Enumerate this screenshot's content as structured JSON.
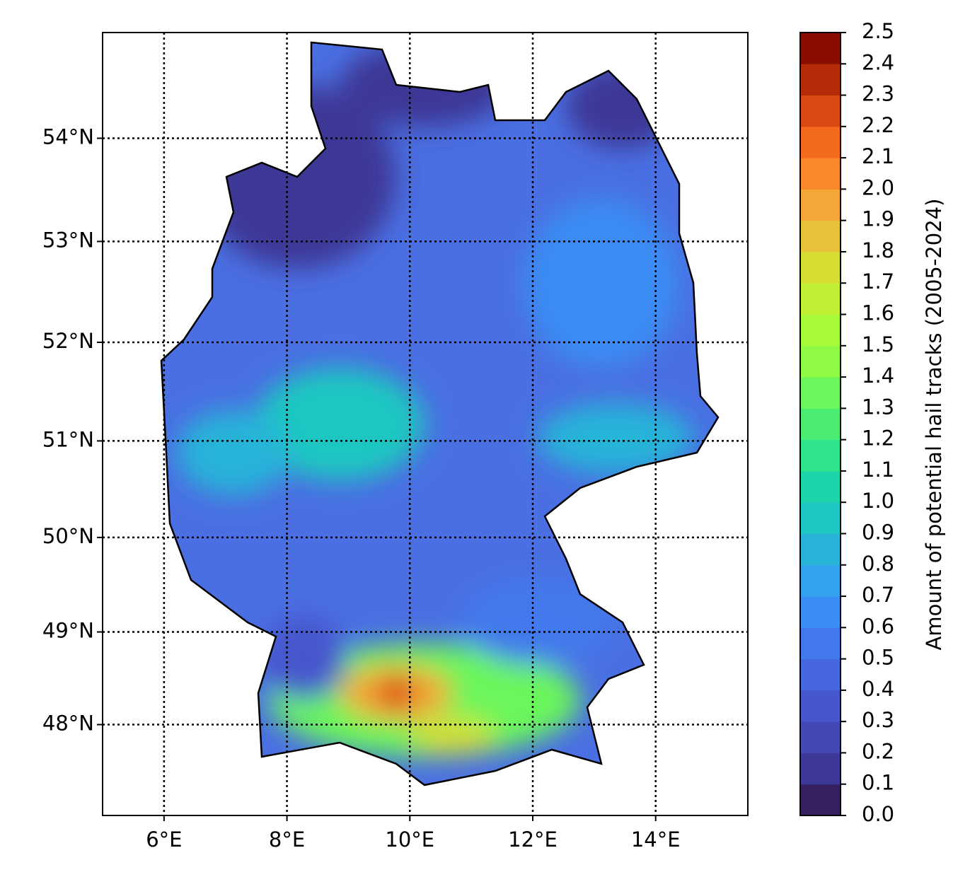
{
  "chart_data": {
    "type": "map",
    "projection": "mercator",
    "xlim": [
      5,
      15.5
    ],
    "ylim": [
      47,
      55
    ],
    "xticks": [
      {
        "value": 6,
        "label": "6°E"
      },
      {
        "value": 8,
        "label": "8°E"
      },
      {
        "value": 10,
        "label": "10°E"
      },
      {
        "value": 12,
        "label": "12°E"
      },
      {
        "value": 14,
        "label": "14°E"
      }
    ],
    "yticks": [
      {
        "value": 48,
        "label": "48°N"
      },
      {
        "value": 49,
        "label": "49°N"
      },
      {
        "value": 50,
        "label": "50°N"
      },
      {
        "value": 51,
        "label": "51°N"
      },
      {
        "value": 52,
        "label": "52°N"
      },
      {
        "value": 53,
        "label": "53°N"
      },
      {
        "value": 54,
        "label": "54°N"
      }
    ],
    "grid": true,
    "colorbar": {
      "label": "Amount of potential hail tracks (2005-2024)",
      "lim": [
        0,
        2.5
      ],
      "ticks": [
        {
          "value": 0,
          "label": "0.0"
        },
        0.1,
        0.2,
        0.3,
        0.4,
        0.5,
        0.6,
        0.7,
        0.8,
        0.9,
        {
          "value": 1,
          "label": "1.0"
        },
        1.1,
        1.2,
        1.3,
        1.4,
        1.5,
        1.6,
        1.7,
        1.8,
        1.9,
        {
          "value": 2,
          "label": "2.0"
        },
        2.1,
        2.2,
        2.3,
        2.4,
        2.5
      ],
      "colors": [
        "#36215e",
        "#3e3896",
        "#4448b4",
        "#4656cd",
        "#4667de",
        "#4279ec",
        "#3b8cf3",
        "#33a1ed",
        "#28b4d8",
        "#1ec7c1",
        "#1bd4aa",
        "#2fe38d",
        "#4bec73",
        "#6af65c",
        "#8ffb45",
        "#a7fa3a",
        "#c1ef34",
        "#d6de34",
        "#e7c33a",
        "#f3a736",
        "#f9882a",
        "#f36a1f",
        "#d94a13",
        "#b52a07",
        "#8a0d02"
      ]
    }
  }
}
